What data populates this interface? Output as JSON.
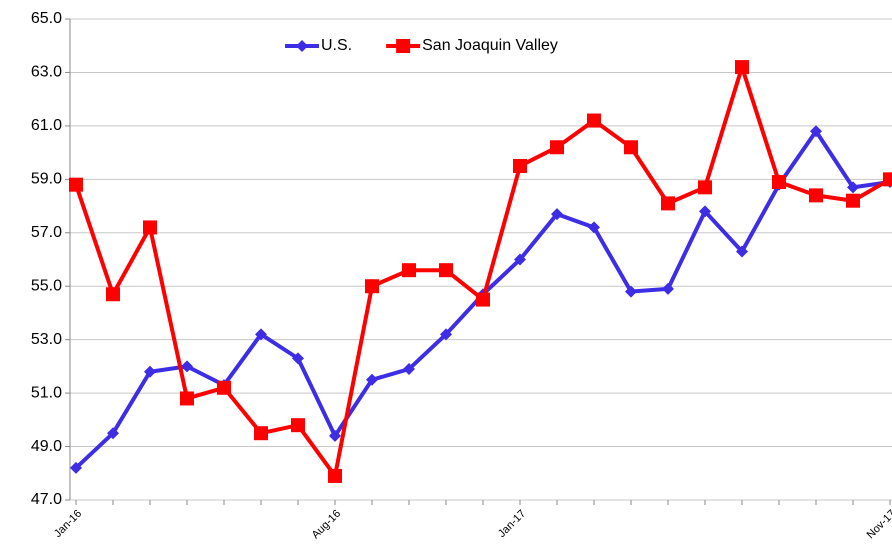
{
  "chart_data": {
    "type": "line",
    "categories": [
      "Jan-16",
      null,
      null,
      null,
      null,
      null,
      null,
      "Aug-16",
      null,
      null,
      null,
      null,
      "Jan-17",
      null,
      null,
      null,
      null,
      null,
      null,
      null,
      null,
      null,
      "Nov-17"
    ],
    "series": [
      {
        "name": "U.S.",
        "color": "#3d2ee6",
        "marker": "diamond",
        "values": [
          48.2,
          49.5,
          51.8,
          52.0,
          51.3,
          53.2,
          52.3,
          49.4,
          51.5,
          51.9,
          53.2,
          54.7,
          56.0,
          57.7,
          57.2,
          54.8,
          54.9,
          57.8,
          56.3,
          58.8,
          60.8,
          58.7,
          58.9
        ]
      },
      {
        "name": "San Joaquin Valley",
        "color": "#ff0000",
        "marker": "square",
        "values": [
          58.8,
          54.7,
          57.2,
          50.8,
          51.2,
          49.5,
          49.8,
          47.9,
          55.0,
          55.6,
          55.6,
          54.5,
          59.5,
          60.2,
          61.2,
          60.2,
          58.1,
          58.7,
          63.2,
          58.9,
          58.4,
          58.2,
          59.0
        ]
      }
    ],
    "ylim": [
      47,
      65
    ],
    "yticks": [
      {
        "value": 47,
        "label": "47.0"
      },
      {
        "value": 49,
        "label": "49.0"
      },
      {
        "value": 51,
        "label": "51.0"
      },
      {
        "value": 53,
        "label": "53.0"
      },
      {
        "value": 55,
        "label": "55.0"
      },
      {
        "value": 57,
        "label": "57.0"
      },
      {
        "value": 59,
        "label": "59.0"
      },
      {
        "value": 61,
        "label": "61.0"
      },
      {
        "value": 63,
        "label": "63.0"
      },
      {
        "value": 65,
        "label": "65.0"
      }
    ],
    "grid": true,
    "legend": "top"
  }
}
